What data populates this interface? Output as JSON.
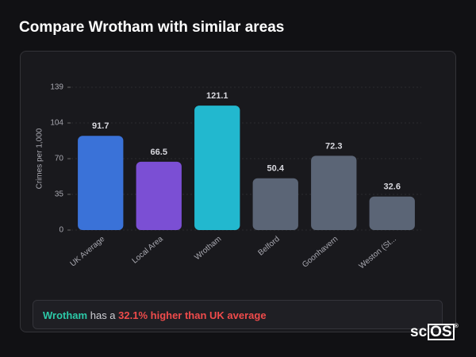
{
  "header": {
    "title": "Compare Wrotham with similar areas"
  },
  "chart_data": {
    "type": "bar",
    "ylabel": "Crimes per 1,000",
    "categories": [
      "UK Average",
      "Local Area",
      "Wrotham",
      "Belford",
      "Goonhavern",
      "Weston (St..."
    ],
    "values": [
      91.7,
      66.5,
      121.1,
      50.4,
      72.3,
      32.6
    ],
    "colors": [
      "#3a72d8",
      "#7b4fd4",
      "#22b8cf",
      "#5b6576",
      "#5b6576",
      "#5b6576"
    ],
    "ylim": [
      0,
      139
    ],
    "yticks": [
      0,
      {
        "value": 34.75,
        "label": "35"
      },
      {
        "value": 69.5,
        "label": "70"
      },
      {
        "value": 104.25,
        "label": "104"
      },
      139
    ],
    "grid": true
  },
  "summary": {
    "area": "Wrotham",
    "middle": "has a",
    "comparison": "32.1% higher than UK average"
  },
  "logo": {
    "prefix": "sc",
    "boxed": "OS"
  }
}
